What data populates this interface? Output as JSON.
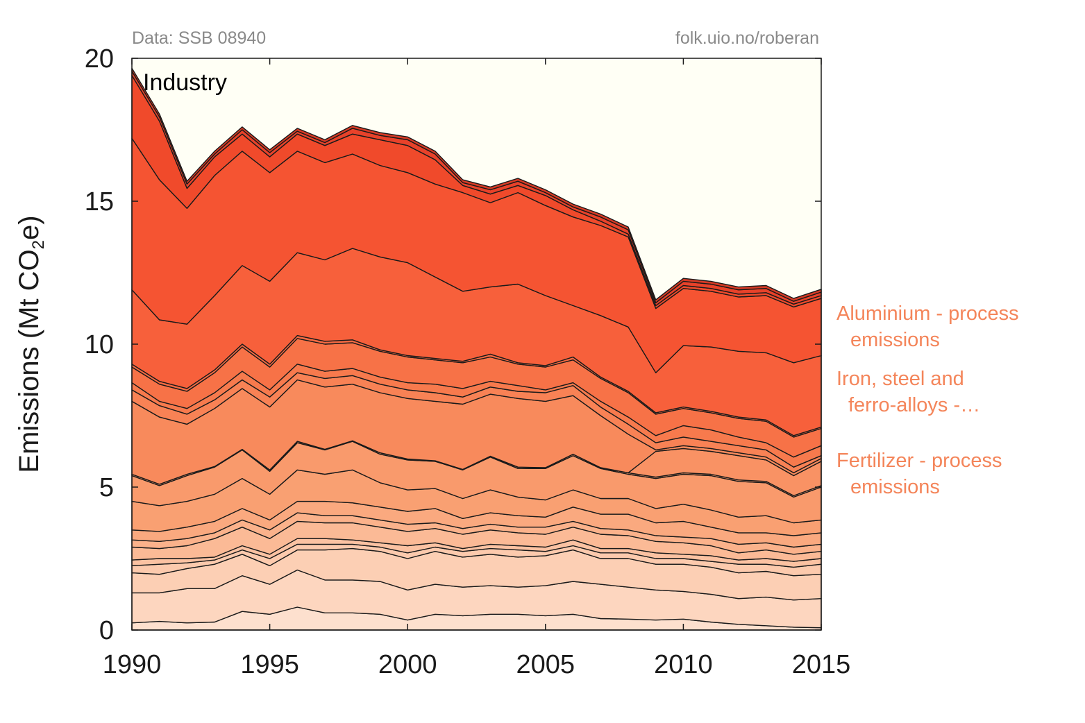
{
  "chart_data": {
    "type": "area",
    "stacked": true,
    "title": "Industry",
    "source_left": "Data: SSB 08940",
    "source_right": "folk.uio.no/roberan",
    "ylabel_prefix": "Emissions (Mt CO",
    "ylabel_sub": "2",
    "ylabel_suffix": "e)",
    "xlim": [
      1990,
      2015
    ],
    "ylim": [
      0,
      20
    ],
    "xticks": [
      1990,
      1995,
      2000,
      2005,
      2010,
      2015
    ],
    "yticks": [
      0,
      5,
      10,
      15,
      20
    ],
    "background": "#fffff5",
    "x": [
      1990,
      1991,
      1992,
      1993,
      1994,
      1995,
      1996,
      1997,
      1998,
      1999,
      2000,
      2001,
      2002,
      2003,
      2004,
      2005,
      2006,
      2007,
      2008,
      2009,
      2010,
      2011,
      2012,
      2013,
      2014,
      2015
    ],
    "boundaries": [
      [
        0.25,
        0.3,
        0.25,
        0.28,
        0.65,
        0.55,
        0.8,
        0.6,
        0.6,
        0.55,
        0.35,
        0.55,
        0.5,
        0.55,
        0.55,
        0.5,
        0.55,
        0.4,
        0.38,
        0.35,
        0.38,
        0.28,
        0.2,
        0.15,
        0.1,
        0.08
      ],
      [
        1.3,
        1.3,
        1.45,
        1.45,
        1.9,
        1.6,
        2.1,
        1.75,
        1.75,
        1.7,
        1.4,
        1.6,
        1.5,
        1.55,
        1.5,
        1.55,
        1.7,
        1.6,
        1.5,
        1.4,
        1.35,
        1.25,
        1.1,
        1.15,
        1.05,
        1.1
      ],
      [
        2.0,
        1.95,
        2.15,
        2.3,
        2.65,
        2.25,
        2.8,
        2.8,
        2.85,
        2.75,
        2.5,
        2.75,
        2.55,
        2.65,
        2.55,
        2.6,
        2.8,
        2.5,
        2.5,
        2.3,
        2.3,
        2.2,
        2.0,
        2.05,
        1.9,
        1.95
      ],
      [
        2.25,
        2.3,
        2.35,
        2.45,
        2.8,
        2.5,
        3.0,
        3.0,
        3.0,
        2.9,
        2.7,
        2.9,
        2.75,
        2.85,
        2.8,
        2.75,
        2.95,
        2.7,
        2.7,
        2.5,
        2.5,
        2.4,
        2.3,
        2.3,
        2.2,
        2.3
      ],
      [
        2.45,
        2.5,
        2.5,
        2.55,
        2.95,
        2.65,
        3.2,
        3.2,
        3.15,
        3.05,
        2.95,
        3.05,
        2.85,
        3.0,
        2.95,
        2.9,
        3.15,
        2.85,
        2.85,
        2.7,
        2.65,
        2.6,
        2.45,
        2.5,
        2.4,
        2.5
      ],
      [
        2.9,
        2.85,
        2.95,
        3.2,
        3.6,
        3.2,
        3.8,
        3.75,
        3.75,
        3.6,
        3.45,
        3.55,
        3.35,
        3.5,
        3.4,
        3.35,
        3.6,
        3.35,
        3.3,
        3.1,
        3.05,
        2.95,
        2.7,
        2.8,
        2.65,
        2.75
      ],
      [
        3.15,
        3.1,
        3.2,
        3.4,
        3.85,
        3.5,
        4.1,
        4.0,
        4.0,
        3.85,
        3.7,
        3.75,
        3.55,
        3.7,
        3.6,
        3.6,
        3.8,
        3.55,
        3.5,
        3.3,
        3.25,
        3.2,
        3.0,
        3.05,
        2.9,
        3.0
      ],
      [
        3.5,
        3.45,
        3.6,
        3.8,
        4.25,
        3.85,
        4.5,
        4.5,
        4.45,
        4.3,
        4.15,
        4.25,
        3.9,
        4.1,
        4.0,
        3.95,
        4.3,
        4.05,
        4.05,
        3.75,
        3.8,
        3.6,
        3.4,
        3.4,
        3.3,
        3.4
      ],
      [
        4.5,
        4.35,
        4.5,
        4.75,
        5.3,
        4.75,
        5.6,
        5.45,
        5.6,
        5.15,
        4.9,
        4.95,
        4.6,
        4.9,
        4.65,
        4.55,
        4.9,
        4.6,
        4.6,
        4.25,
        4.4,
        4.2,
        3.95,
        4.0,
        3.75,
        3.85
      ],
      [
        5.4,
        5.05,
        5.4,
        5.7,
        6.3,
        5.55,
        6.55,
        6.3,
        6.6,
        6.15,
        5.95,
        5.9,
        5.6,
        6.05,
        5.65,
        5.65,
        6.1,
        5.65,
        5.45,
        5.3,
        5.45,
        5.4,
        5.2,
        5.15,
        4.65,
        5.0
      ],
      [
        5.45,
        5.1,
        5.45,
        5.72,
        6.32,
        5.6,
        6.6,
        6.32,
        6.62,
        6.2,
        5.98,
        5.92,
        5.62,
        6.08,
        5.7,
        5.68,
        6.15,
        5.68,
        5.5,
        5.35,
        5.5,
        5.45,
        5.25,
        5.2,
        4.7,
        5.05
      ],
      [
        5.45,
        5.1,
        5.45,
        5.72,
        6.32,
        5.6,
        6.6,
        6.32,
        6.62,
        6.2,
        5.98,
        5.92,
        5.62,
        6.08,
        5.7,
        5.68,
        6.15,
        5.68,
        5.5,
        6.25,
        6.35,
        6.25,
        6.1,
        5.95,
        5.4,
        5.9
      ],
      [
        8.0,
        7.45,
        7.2,
        7.75,
        8.45,
        7.8,
        8.75,
        8.5,
        8.6,
        8.3,
        8.1,
        8.0,
        7.9,
        8.25,
        8.1,
        8.0,
        8.2,
        7.5,
        6.85,
        6.3,
        6.45,
        6.35,
        6.2,
        6.05,
        5.5,
        6.0
      ],
      [
        8.4,
        7.85,
        7.55,
        8.05,
        8.75,
        8.15,
        9.0,
        8.8,
        8.9,
        8.6,
        8.4,
        8.3,
        8.15,
        8.5,
        8.35,
        8.3,
        8.55,
        7.8,
        7.2,
        6.55,
        6.75,
        6.6,
        6.45,
        6.3,
        5.7,
        6.1
      ],
      [
        8.65,
        8.0,
        7.75,
        8.3,
        9.05,
        8.4,
        9.3,
        9.05,
        9.15,
        8.85,
        8.65,
        8.6,
        8.45,
        8.7,
        8.55,
        8.4,
        8.65,
        8.0,
        7.45,
        6.8,
        7.15,
        7.0,
        6.75,
        6.55,
        6.05,
        6.45
      ],
      [
        9.2,
        8.6,
        8.35,
        9.0,
        9.9,
        9.2,
        10.2,
        10.0,
        10.05,
        9.75,
        9.55,
        9.45,
        9.35,
        9.55,
        9.3,
        9.2,
        9.45,
        8.8,
        8.3,
        7.55,
        7.75,
        7.6,
        7.4,
        7.3,
        6.75,
        7.05
      ],
      [
        9.3,
        8.7,
        8.45,
        9.1,
        10.0,
        9.3,
        10.3,
        10.1,
        10.15,
        9.8,
        9.6,
        9.5,
        9.4,
        9.65,
        9.35,
        9.25,
        9.55,
        8.85,
        8.35,
        7.6,
        7.8,
        7.65,
        7.45,
        7.35,
        6.8,
        7.1
      ],
      [
        11.9,
        10.85,
        10.7,
        11.7,
        12.75,
        12.2,
        13.2,
        12.95,
        13.35,
        13.05,
        12.85,
        12.35,
        11.85,
        12.0,
        12.1,
        11.7,
        11.35,
        11.0,
        10.6,
        9.0,
        9.95,
        9.9,
        9.75,
        9.7,
        9.35,
        9.6
      ],
      [
        17.2,
        15.75,
        14.75,
        15.9,
        16.75,
        16.0,
        16.75,
        16.35,
        16.65,
        16.25,
        16.0,
        15.6,
        15.3,
        14.95,
        15.3,
        14.85,
        14.45,
        14.15,
        13.75,
        11.25,
        11.95,
        11.85,
        11.65,
        11.7,
        11.3,
        11.6
      ],
      [
        19.4,
        17.8,
        15.45,
        16.55,
        17.35,
        16.55,
        17.35,
        16.95,
        17.35,
        17.15,
        16.95,
        16.45,
        15.55,
        15.25,
        15.55,
        15.2,
        14.7,
        14.3,
        13.85,
        11.35,
        12.05,
        11.95,
        11.75,
        11.8,
        11.4,
        11.7
      ],
      [
        19.55,
        17.95,
        15.6,
        16.65,
        17.5,
        16.7,
        17.45,
        17.05,
        17.55,
        17.3,
        17.15,
        16.65,
        15.65,
        15.4,
        15.7,
        15.3,
        14.8,
        14.45,
        14.0,
        11.45,
        12.2,
        12.1,
        11.9,
        11.95,
        11.5,
        11.82
      ],
      [
        19.65,
        18.05,
        15.7,
        16.75,
        17.6,
        16.8,
        17.55,
        17.15,
        17.65,
        17.4,
        17.25,
        16.75,
        15.75,
        15.5,
        15.8,
        15.4,
        14.9,
        14.55,
        14.1,
        11.55,
        12.3,
        12.2,
        12.0,
        12.05,
        11.6,
        11.92
      ]
    ],
    "colors": [
      "#fde0ce",
      "#fdd6bf",
      "#fccfb4",
      "#fccaad",
      "#fbc2a2",
      "#fbba96",
      "#fbb28b",
      "#faa97f",
      "#f9a072",
      "#f99a6c",
      "#f99a6c",
      "#f99264",
      "#f88a5c",
      "#f88255",
      "#f77a4d",
      "#f77247",
      "#f76a42",
      "#f7603b",
      "#f55432",
      "#f04a2b",
      "#e8422a",
      "#d63a25"
    ],
    "legend_entries": [
      {
        "name": "Aluminium - process",
        "name2": "emissions"
      },
      {
        "name": "Iron, steel and",
        "name2": "ferro-alloys -…"
      },
      {
        "name": "Fertilizer - process",
        "name2": "emissions"
      }
    ]
  }
}
